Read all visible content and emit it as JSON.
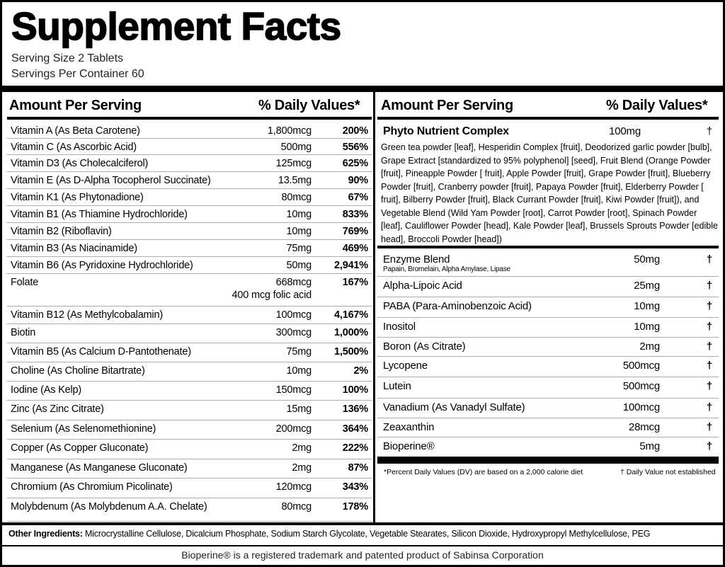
{
  "title": "Supplement Facts",
  "serving_size": "Serving Size 2 Tablets",
  "servings_per_container": "Servings Per Container 60",
  "left": {
    "header": {
      "amount": "Amount Per Serving",
      "dv": "% Daily Values*"
    },
    "rows": [
      {
        "name": "Vitamin A (As Beta Carotene)",
        "amount": "1,800mcg",
        "dv": "200%"
      },
      {
        "name": "Vitamin C (As Ascorbic Acid)",
        "amount": "500mg",
        "dv": "556%"
      },
      {
        "name": "Vitamin D3 (As Cholecalciferol)",
        "amount": "125mcg",
        "dv": "625%"
      },
      {
        "name": "Vitamin E (As D-Alpha Tocopherol Succinate)",
        "amount": "13.5mg",
        "dv": "90%"
      },
      {
        "name": "Vitamin K1 (As Phytonadione)",
        "amount": "80mcg",
        "dv": "67%"
      },
      {
        "name": "Vitamin B1 (As Thiamine Hydrochloride)",
        "amount": "10mg",
        "dv": "833%"
      },
      {
        "name": "Vitamin B2 (Riboflavin)",
        "amount": "10mg",
        "dv": "769%"
      },
      {
        "name": "Vitamin B3 (As Niacinamide)",
        "amount": "75mg",
        "dv": "469%"
      },
      {
        "name": "Vitamin B6 (As Pyridoxine Hydrochloride)",
        "amount": "50mg",
        "dv": "2,941%"
      },
      {
        "name": "Folate",
        "amount": "668mcg",
        "dv": "167%",
        "note": "400 mcg folic acid"
      },
      {
        "name": "Vitamin B12 (As Methylcobalamin)",
        "amount": "100mcg",
        "dv": "4,167%"
      },
      {
        "name": "Biotin",
        "amount": "300mcg",
        "dv": "1,000%"
      },
      {
        "name": "Vitamin B5 (As Calcium D-Pantothenate)",
        "amount": "75mg",
        "dv": "1,500%"
      },
      {
        "name": "Choline (As Choline Bitartrate)",
        "amount": "10mg",
        "dv": "2%"
      },
      {
        "name": "Iodine (As Kelp)",
        "amount": "150mcg",
        "dv": "100%"
      },
      {
        "name": "Zinc (As Zinc Citrate)",
        "amount": "15mg",
        "dv": "136%"
      },
      {
        "name": "Selenium (As Selenomethionine)",
        "amount": "200mcg",
        "dv": "364%"
      },
      {
        "name": "Copper (As Copper Gluconate)",
        "amount": "2mg",
        "dv": "222%"
      },
      {
        "name": "Manganese (As Manganese Gluconate)",
        "amount": "2mg",
        "dv": "87%"
      },
      {
        "name": "Chromium (As Chromium Picolinate)",
        "amount": "120mcg",
        "dv": "343%"
      },
      {
        "name": "Molybdenum (As Molybdenum A.A. Chelate)",
        "amount": "80mcg",
        "dv": "178%"
      }
    ]
  },
  "right": {
    "header": {
      "amount": "Amount Per Serving",
      "dv": "% Daily Values*"
    },
    "phyto": {
      "name": "Phyto Nutrient Complex",
      "amount": "100mg",
      "dv": "†",
      "description": "Green tea powder [leaf], Hesperidin Complex [fruit], Deodorized garlic powder [bulb], Grape Extract [standardized to 95% polyphenol] [seed], Fruit Blend (Orange Powder [fruit], Pineapple Powder [ fruit], Apple Powder [fruit], Grape Powder [fruit], Blueberry Powder [fruit], Cranberry powder [fruit], Papaya Powder [fruit], Elderberry Powder [ fruit], Bilberry Powder [fruit], Black Currant Powder [fruit], Kiwi Powder [fruit]), and Vegetable Blend (Wild Yam Powder [root], Carrot Powder [root], Spinach Powder [leaf], Cauliflower Powder [head], Kale Powder [leaf], Brussels Sprouts Powder [edible head], Broccoli Powder [head])"
    },
    "rows": [
      {
        "name": "Enzyme Blend",
        "sub": "Papain, Bromelain, Alpha Amylase, Lipase",
        "amount": "50mg",
        "dv": "†"
      },
      {
        "name": "Alpha-Lipoic Acid",
        "amount": "25mg",
        "dv": "†"
      },
      {
        "name": "PABA (Para-Aminobenzoic Acid)",
        "amount": "10mg",
        "dv": "†"
      },
      {
        "name": "Inositol",
        "amount": "10mg",
        "dv": "†"
      },
      {
        "name": "Boron (As Citrate)",
        "amount": "2mg",
        "dv": "†"
      },
      {
        "name": "Lycopene",
        "amount": "500mcg",
        "dv": "†"
      },
      {
        "name": "Lutein",
        "amount": "500mcg",
        "dv": "†"
      },
      {
        "name": "Vanadium (As Vanadyl Sulfate)",
        "amount": "100mcg",
        "dv": "†"
      },
      {
        "name": "Zeaxanthin",
        "amount": "28mcg",
        "dv": "†"
      },
      {
        "name": "Bioperine®",
        "amount": "5mg",
        "dv": "†"
      }
    ],
    "footnote_dv": "*Percent Daily Values (DV) are based on a 2,000 calorie diet",
    "footnote_dagger": "† Daily Value not established"
  },
  "other_ingredients": {
    "label": "Other Ingredients:",
    "text": " Microcrystalline Cellulose, Dicalcium Phosphate, Sodium Starch Glycolate, Vegetable Stearates, Silicon Dioxide, Hydroxypropyl Methylcellulose, PEG"
  },
  "trademark": "Bioperine® is a registered trademark and patented product of Sabinsa Corporation"
}
